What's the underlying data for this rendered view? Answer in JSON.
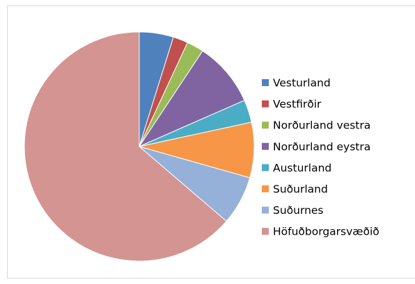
{
  "chart_data": {
    "type": "pie",
    "categories": [
      "Vesturland",
      "Vestfirðir",
      "Norðurland vestra",
      "Norðurland eystra",
      "Austurland",
      "Suðurland",
      "Suðurnes",
      "Höfuðborgarsvæðið"
    ],
    "values": [
      4.8,
      2.1,
      2.4,
      9.1,
      3.2,
      7.8,
      6.9,
      63.7
    ],
    "colors": [
      "#4f81bd",
      "#c0504d",
      "#9bbb59",
      "#8064a2",
      "#4bacc6",
      "#f79646",
      "#95b0d9",
      "#d39492"
    ],
    "legend": "right"
  }
}
